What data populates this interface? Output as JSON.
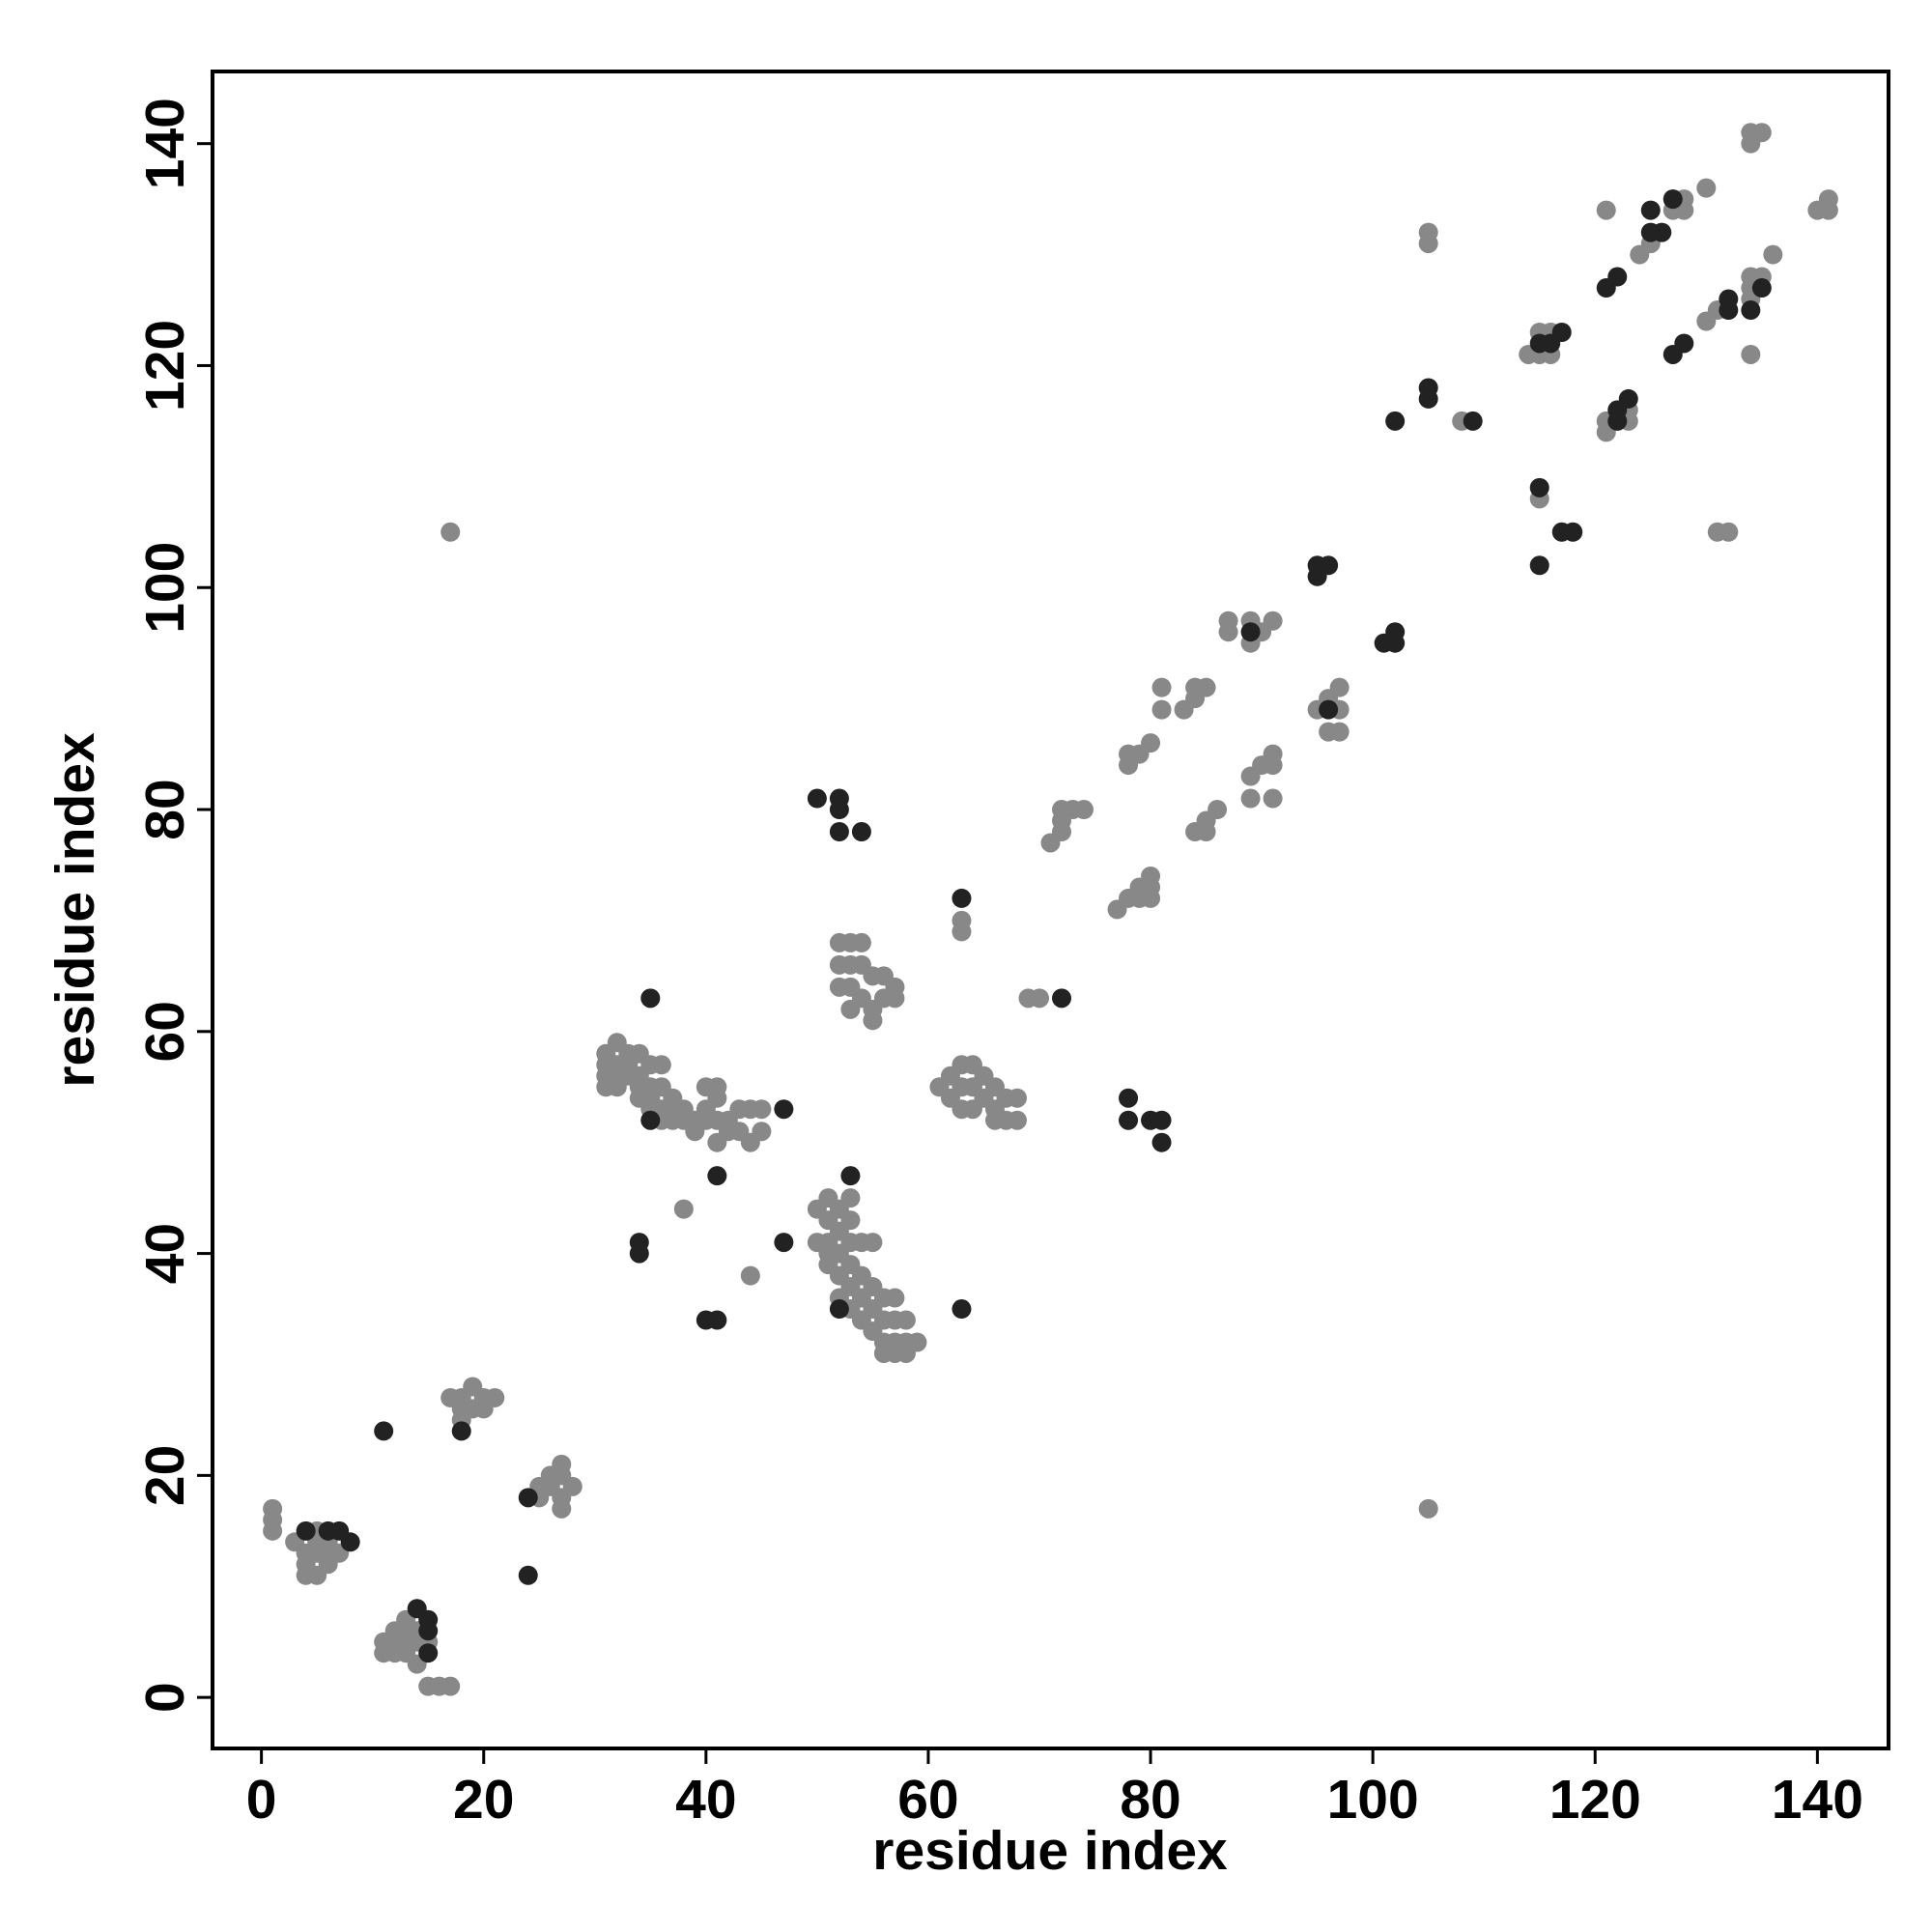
{
  "chart_data": {
    "type": "scatter",
    "x_label": "residue index",
    "y_label": "residue index",
    "xlim": [
      -4.4,
      146.4
    ],
    "ylim": [
      -4.6,
      146.5
    ],
    "xticks": [
      0,
      20,
      40,
      60,
      80,
      100,
      120,
      140
    ],
    "yticks": [
      0,
      20,
      40,
      60,
      80,
      100,
      120,
      140
    ],
    "series": [
      {
        "color": "#888888",
        "x": [
          1,
          1,
          1,
          3,
          4,
          4,
          4,
          5,
          5,
          5,
          5,
          6,
          6,
          6,
          7,
          11,
          11,
          12,
          12,
          12,
          13,
          13,
          13,
          13,
          14,
          14,
          14,
          15,
          16,
          17,
          15,
          17,
          18,
          18,
          18,
          19,
          19,
          20,
          20,
          21,
          25,
          25,
          26,
          26,
          27,
          27,
          27,
          27,
          28,
          17,
          105,
          31,
          31,
          31,
          31,
          32,
          32,
          32,
          32,
          33,
          33,
          33,
          34,
          34,
          34,
          34,
          35,
          35,
          35,
          35,
          36,
          36,
          36,
          36,
          37,
          37,
          37,
          38,
          38,
          39,
          39,
          40,
          40,
          40,
          41,
          41,
          41,
          41,
          42,
          42,
          43,
          43,
          44,
          44,
          45,
          45,
          38,
          44,
          50,
          50,
          51,
          51,
          51,
          51,
          51,
          52,
          52,
          52,
          52,
          52,
          53,
          53,
          53,
          53,
          53,
          53,
          54,
          54,
          54,
          54,
          55,
          55,
          55,
          55,
          56,
          56,
          56,
          56,
          57,
          57,
          57,
          57,
          58,
          58,
          58,
          59,
          52,
          52,
          52,
          53,
          53,
          53,
          53,
          54,
          54,
          54,
          55,
          55,
          55,
          56,
          56,
          57,
          57,
          61,
          62,
          62,
          63,
          63,
          63,
          64,
          64,
          64,
          65,
          65,
          66,
          66,
          66,
          67,
          67,
          68,
          68,
          63,
          63,
          69,
          70,
          71,
          72,
          72,
          72,
          73,
          74,
          77,
          78,
          79,
          79,
          80,
          80,
          80,
          78,
          78,
          79,
          80,
          81,
          81,
          83,
          84,
          84,
          85,
          84,
          85,
          85,
          86,
          87,
          87,
          89,
          89,
          90,
          91,
          89,
          89,
          90,
          91,
          91,
          91,
          95,
          96,
          96,
          97,
          97,
          97,
          105,
          105,
          108,
          114,
          115,
          115,
          115,
          116,
          116,
          121,
          121,
          121,
          123,
          123,
          124,
          125,
          127,
          127,
          128,
          128,
          130,
          130,
          131,
          131,
          132,
          134,
          134,
          134,
          134,
          134,
          134,
          135,
          135,
          136,
          140,
          141,
          141
        ],
        "values": [
          17,
          16,
          15,
          14,
          13,
          12,
          11,
          11,
          13,
          14,
          15,
          12,
          13,
          14,
          13,
          5,
          4,
          6,
          5,
          4,
          7,
          6,
          5,
          4,
          3,
          5,
          6,
          1,
          1,
          1,
          5,
          27,
          27,
          26,
          25,
          28,
          26,
          27,
          26,
          27,
          19,
          18,
          20,
          19,
          21,
          20,
          18,
          17,
          19,
          105,
          17,
          58,
          57,
          56,
          55,
          59,
          57,
          56,
          55,
          58,
          57,
          56,
          58,
          56,
          55,
          54,
          57,
          55,
          54,
          53,
          57,
          55,
          53,
          52,
          54,
          53,
          52,
          53,
          52,
          52,
          51,
          55,
          53,
          52,
          55,
          54,
          52,
          50,
          52,
          51,
          53,
          51,
          53,
          50,
          53,
          51,
          44,
          38,
          44,
          41,
          45,
          43,
          41,
          40,
          39,
          44,
          42,
          40,
          38,
          36,
          45,
          43,
          41,
          39,
          37,
          35,
          41,
          38,
          36,
          34,
          41,
          37,
          35,
          33,
          36,
          34,
          32,
          31,
          36,
          34,
          32,
          31,
          34,
          32,
          31,
          32,
          68,
          66,
          64,
          68,
          66,
          64,
          62,
          68,
          66,
          63,
          65,
          62,
          61,
          65,
          63,
          64,
          63,
          55,
          56,
          54,
          57,
          55,
          53,
          57,
          55,
          53,
          56,
          54,
          55,
          53,
          52,
          54,
          52,
          54,
          52,
          70,
          69,
          63,
          63,
          77,
          78,
          79,
          80,
          80,
          80,
          71,
          72,
          72,
          73,
          72,
          73,
          74,
          85,
          84,
          85,
          86,
          91,
          89,
          89,
          90,
          91,
          91,
          78,
          78,
          79,
          80,
          97,
          96,
          97,
          95,
          96,
          97,
          83,
          81,
          84,
          85,
          84,
          81,
          89,
          90,
          87,
          91,
          89,
          87,
          132,
          131,
          115,
          121,
          121,
          123,
          108,
          123,
          121,
          134,
          115,
          114,
          116,
          115,
          130,
          131,
          134,
          135,
          135,
          134,
          136,
          124,
          125,
          105,
          105,
          141,
          140,
          128,
          127,
          126,
          121,
          141,
          128,
          130,
          134,
          135,
          134
        ]
      },
      {
        "color": "#222222",
        "x": [
          4,
          6,
          7,
          8,
          14,
          15,
          15,
          15,
          11,
          18,
          24,
          24,
          35,
          35,
          34,
          34,
          40,
          41,
          41,
          47,
          47,
          50,
          52,
          52,
          52,
          54,
          52,
          53,
          63,
          63,
          72,
          78,
          78,
          80,
          81,
          81,
          89,
          96,
          95,
          96,
          95,
          101,
          102,
          102,
          102,
          105,
          105,
          109,
          115,
          115,
          115,
          116,
          117,
          117,
          118,
          121,
          122,
          122,
          122,
          123,
          125,
          125,
          126,
          127,
          128,
          132,
          132,
          134,
          135,
          127
        ],
        "values": [
          15,
          15,
          15,
          14,
          8,
          7,
          6,
          4,
          24,
          24,
          18,
          11,
          63,
          52,
          41,
          40,
          34,
          34,
          47,
          53,
          41,
          81,
          81,
          80,
          78,
          78,
          35,
          47,
          72,
          35,
          63,
          54,
          52,
          52,
          52,
          50,
          96,
          89,
          102,
          102,
          101,
          95,
          95,
          96,
          115,
          118,
          117,
          115,
          109,
          102,
          122,
          122,
          123,
          105,
          105,
          127,
          128,
          115,
          116,
          117,
          134,
          132,
          132,
          121,
          122,
          126,
          125,
          125,
          127,
          135
        ]
      }
    ]
  }
}
